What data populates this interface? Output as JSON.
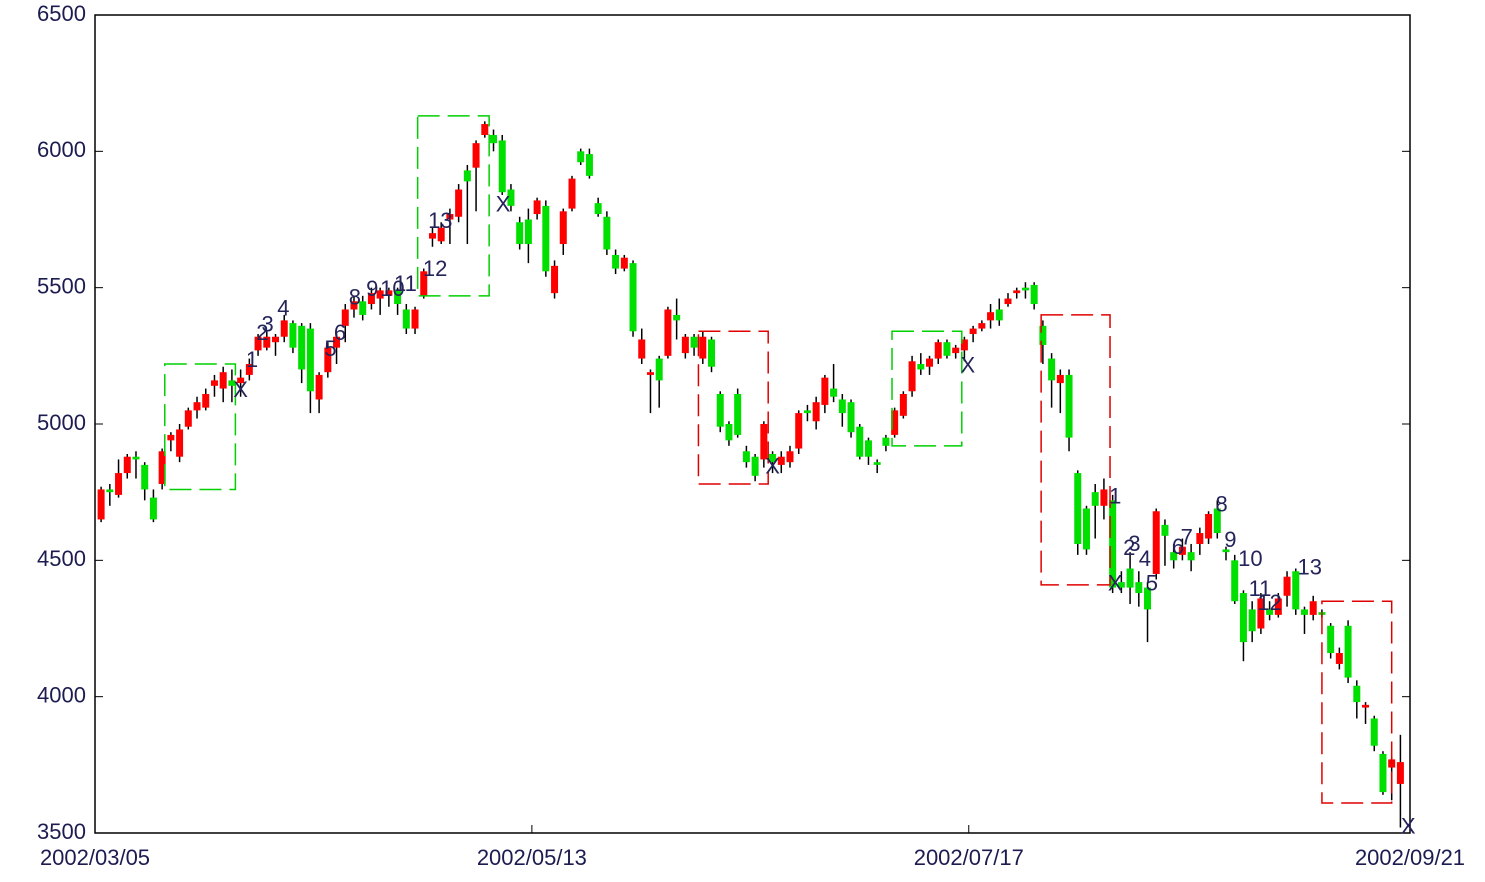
{
  "chart_data": {
    "type": "candlestick",
    "up_color": "#ff0000",
    "down_color": "#00e000",
    "ylim": [
      3500,
      6500
    ],
    "yticks": [
      3500,
      4000,
      4500,
      5000,
      5500,
      6000,
      6500
    ],
    "xlim": [
      -0.7,
      150.1
    ],
    "xticks": [
      {
        "value": -0.7,
        "label": "2002/03/05"
      },
      {
        "value": 49.4,
        "label": "2002/05/13"
      },
      {
        "value": 99.5,
        "label": "2002/07/17"
      },
      {
        "value": 150.1,
        "label": "2002/09/21"
      }
    ],
    "open": [
      4650,
      4760,
      4740,
      4820,
      4880,
      4850,
      4730,
      4780,
      4940,
      4880,
      4990,
      5050,
      5060,
      5140,
      5130,
      5160,
      5150,
      5180,
      5270,
      5280,
      5300,
      5320,
      5370,
      5360,
      5350,
      5090,
      5190,
      5280,
      5360,
      5420,
      5450,
      5440,
      5460,
      5470,
      5490,
      5420,
      5350,
      5470,
      5680,
      5670,
      5750,
      5760,
      5930,
      5940,
      6060,
      6060,
      6040,
      5860,
      5740,
      5750,
      5770,
      5800,
      5480,
      5660,
      5790,
      6000,
      5990,
      5810,
      5760,
      5620,
      5570,
      5590,
      5240,
      5180,
      5240,
      5250,
      5400,
      5260,
      5320,
      5240,
      5310,
      5110,
      5000,
      5110,
      4900,
      4880,
      4870,
      4890,
      4850,
      4860,
      4910,
      5050,
      5010,
      5070,
      5130,
      5090,
      5080,
      4990,
      4940,
      4860,
      4950,
      4960,
      5030,
      5120,
      5220,
      5210,
      5240,
      5300,
      5260,
      5270,
      5330,
      5350,
      5380,
      5420,
      5440,
      5480,
      5500,
      5510,
      5360,
      5240,
      5150,
      5180,
      4820,
      4690,
      4750,
      4700,
      4720,
      4420,
      4470,
      4420,
      4400,
      4450,
      4630,
      4530,
      4520,
      4530,
      4560,
      4580,
      4690,
      4540,
      4500,
      4380,
      4320,
      4250,
      4320,
      4300,
      4370,
      4460,
      4320,
      4300,
      4310,
      4260,
      4120,
      4260,
      4040,
      3960,
      3920,
      3790,
      3740,
      3680
    ],
    "high": [
      4770,
      4780,
      4870,
      4890,
      4900,
      4860,
      4760,
      4910,
      4970,
      5000,
      5060,
      5100,
      5130,
      5180,
      5210,
      5200,
      5200,
      5240,
      5330,
      5340,
      5330,
      5400,
      5380,
      5370,
      5370,
      5190,
      5300,
      5330,
      5440,
      5470,
      5470,
      5500,
      5500,
      5500,
      5500,
      5440,
      5430,
      5570,
      5720,
      5740,
      5790,
      5880,
      5950,
      6040,
      6110,
      6080,
      6060,
      5880,
      5760,
      5790,
      5830,
      5820,
      5600,
      5790,
      5910,
      6010,
      6010,
      5830,
      5780,
      5640,
      5620,
      5600,
      5350,
      5200,
      5250,
      5430,
      5460,
      5330,
      5330,
      5340,
      5320,
      5120,
      5010,
      5130,
      4920,
      4890,
      5010,
      4900,
      4900,
      4920,
      5050,
      5070,
      5100,
      5180,
      5220,
      5110,
      5090,
      5000,
      4950,
      4870,
      4960,
      5060,
      5120,
      5250,
      5260,
      5250,
      5310,
      5310,
      5290,
      5320,
      5360,
      5380,
      5440,
      5460,
      5480,
      5500,
      5520,
      5520,
      5380,
      5260,
      5200,
      5200,
      4830,
      4700,
      4780,
      4800,
      4740,
      4460,
      4530,
      4460,
      4420,
      4690,
      4650,
      4560,
      4580,
      4560,
      4620,
      4680,
      4720,
      4550,
      4520,
      4390,
      4350,
      4380,
      4350,
      4380,
      4460,
      4470,
      4330,
      4370,
      4320,
      4270,
      4180,
      4280,
      4060,
      3980,
      3930,
      3800,
      3780,
      3860
    ],
    "low": [
      4640,
      4700,
      4730,
      4800,
      4800,
      4720,
      4640,
      4760,
      4900,
      4860,
      4980,
      5020,
      5050,
      5100,
      5080,
      5080,
      5100,
      5160,
      5250,
      5270,
      5250,
      5300,
      5260,
      5150,
      5040,
      5040,
      5170,
      5220,
      5300,
      5390,
      5380,
      5420,
      5400,
      5430,
      5400,
      5330,
      5330,
      5460,
      5650,
      5660,
      5660,
      5740,
      5660,
      5780,
      6050,
      6000,
      5840,
      5780,
      5640,
      5590,
      5750,
      5540,
      5460,
      5620,
      5780,
      5950,
      5900,
      5760,
      5620,
      5550,
      5560,
      5320,
      5220,
      5040,
      5060,
      5240,
      5310,
      5240,
      5250,
      5220,
      5190,
      4970,
      4920,
      4950,
      4840,
      4790,
      4840,
      4820,
      4820,
      4840,
      4890,
      5010,
      4980,
      5040,
      5080,
      4990,
      4950,
      4870,
      4850,
      4820,
      4900,
      4950,
      5020,
      5100,
      5180,
      5180,
      5220,
      5240,
      5240,
      5230,
      5300,
      5340,
      5350,
      5360,
      5430,
      5460,
      5460,
      5420,
      5220,
      5060,
      5040,
      4900,
      4520,
      4520,
      4580,
      4650,
      4380,
      4380,
      4340,
      4330,
      4200,
      4430,
      4480,
      4470,
      4500,
      4460,
      4520,
      4560,
      4580,
      4500,
      4340,
      4130,
      4200,
      4230,
      4280,
      4290,
      4330,
      4300,
      4230,
      4280,
      4290,
      4140,
      4100,
      4050,
      3920,
      3900,
      3800,
      3640,
      3620,
      3520
    ],
    "close": [
      4760,
      4750,
      4820,
      4880,
      4870,
      4760,
      4650,
      4900,
      4960,
      4980,
      5050,
      5080,
      5110,
      5160,
      5190,
      5140,
      5170,
      5220,
      5320,
      5320,
      5320,
      5380,
      5280,
      5200,
      5120,
      5180,
      5280,
      5320,
      5420,
      5450,
      5400,
      5480,
      5490,
      5490,
      5440,
      5350,
      5420,
      5560,
      5700,
      5720,
      5770,
      5860,
      5890,
      6030,
      6100,
      6030,
      5850,
      5800,
      5660,
      5660,
      5820,
      5560,
      5580,
      5780,
      5900,
      5960,
      5910,
      5770,
      5640,
      5570,
      5610,
      5340,
      5310,
      5190,
      5160,
      5420,
      5380,
      5320,
      5280,
      5320,
      5210,
      4990,
      4940,
      4960,
      4860,
      4810,
      5000,
      4860,
      4880,
      4900,
      5040,
      5040,
      5080,
      5170,
      5100,
      5040,
      4970,
      4880,
      4880,
      4850,
      4920,
      5050,
      5110,
      5230,
      5200,
      5240,
      5300,
      5250,
      5280,
      5310,
      5350,
      5370,
      5410,
      5380,
      5460,
      5490,
      5490,
      5440,
      5290,
      5160,
      5180,
      4950,
      4560,
      4540,
      4700,
      4760,
      4400,
      4400,
      4400,
      4380,
      4320,
      4680,
      4590,
      4500,
      4550,
      4500,
      4600,
      4670,
      4600,
      4530,
      4350,
      4200,
      4240,
      4360,
      4300,
      4360,
      4440,
      4320,
      4300,
      4350,
      4300,
      4160,
      4160,
      4070,
      3980,
      3970,
      3820,
      3650,
      3770,
      3760
    ],
    "boxes": [
      {
        "color": "#00d000",
        "x": [
          7.3,
          15.4
        ],
        "y": [
          4760,
          5220
        ]
      },
      {
        "color": "#00d000",
        "x": [
          36.3,
          44.5
        ],
        "y": [
          5470,
          6130
        ]
      },
      {
        "color": "#e00000",
        "x": [
          68.5,
          76.5
        ],
        "y": [
          4780,
          5340
        ]
      },
      {
        "color": "#00d000",
        "x": [
          90.7,
          98.7
        ],
        "y": [
          4920,
          5340
        ]
      },
      {
        "color": "#e00000",
        "x": [
          107.8,
          115.7
        ],
        "y": [
          4410,
          5400
        ]
      },
      {
        "color": "#e00000",
        "x": [
          140.0,
          148.0
        ],
        "y": [
          3610,
          4350
        ]
      }
    ],
    "annotations": [
      {
        "text": "X",
        "x": 16.0,
        "y": 5120
      },
      {
        "text": "1",
        "x": 17.3,
        "y": 5230
      },
      {
        "text": "2",
        "x": 18.5,
        "y": 5330
      },
      {
        "text": "3",
        "x": 19.1,
        "y": 5360
      },
      {
        "text": "4",
        "x": 20.9,
        "y": 5420
      },
      {
        "text": "5",
        "x": 26.3,
        "y": 5270
      },
      {
        "text": "6",
        "x": 27.4,
        "y": 5330
      },
      {
        "text": "8",
        "x": 29.1,
        "y": 5460
      },
      {
        "text": "9",
        "x": 31.1,
        "y": 5490
      },
      {
        "text": "10",
        "x": 33.4,
        "y": 5490
      },
      {
        "text": "11",
        "x": 34.9,
        "y": 5510
      },
      {
        "text": "12",
        "x": 38.3,
        "y": 5565
      },
      {
        "text": "13",
        "x": 38.9,
        "y": 5740
      },
      {
        "text": "X",
        "x": 46.1,
        "y": 5800
      },
      {
        "text": "X",
        "x": 77.0,
        "y": 4840
      },
      {
        "text": "X",
        "x": 99.4,
        "y": 5210
      },
      {
        "text": "1",
        "x": 116.3,
        "y": 4730
      },
      {
        "text": "X",
        "x": 116.3,
        "y": 4410
      },
      {
        "text": "2",
        "x": 117.9,
        "y": 4540
      },
      {
        "text": "3",
        "x": 118.5,
        "y": 4555
      },
      {
        "text": "4",
        "x": 119.7,
        "y": 4500
      },
      {
        "text": "5",
        "x": 120.5,
        "y": 4410
      },
      {
        "text": "6",
        "x": 123.5,
        "y": 4545
      },
      {
        "text": "7",
        "x": 124.5,
        "y": 4580
      },
      {
        "text": "8",
        "x": 128.5,
        "y": 4700
      },
      {
        "text": "9",
        "x": 129.5,
        "y": 4570
      },
      {
        "text": "10",
        "x": 131.8,
        "y": 4500
      },
      {
        "text": "11",
        "x": 132.9,
        "y": 4390
      },
      {
        "text": "12",
        "x": 134.0,
        "y": 4340
      },
      {
        "text": "13",
        "x": 138.6,
        "y": 4470
      },
      {
        "text": "X",
        "x": 149.9,
        "y": 3520
      }
    ]
  }
}
